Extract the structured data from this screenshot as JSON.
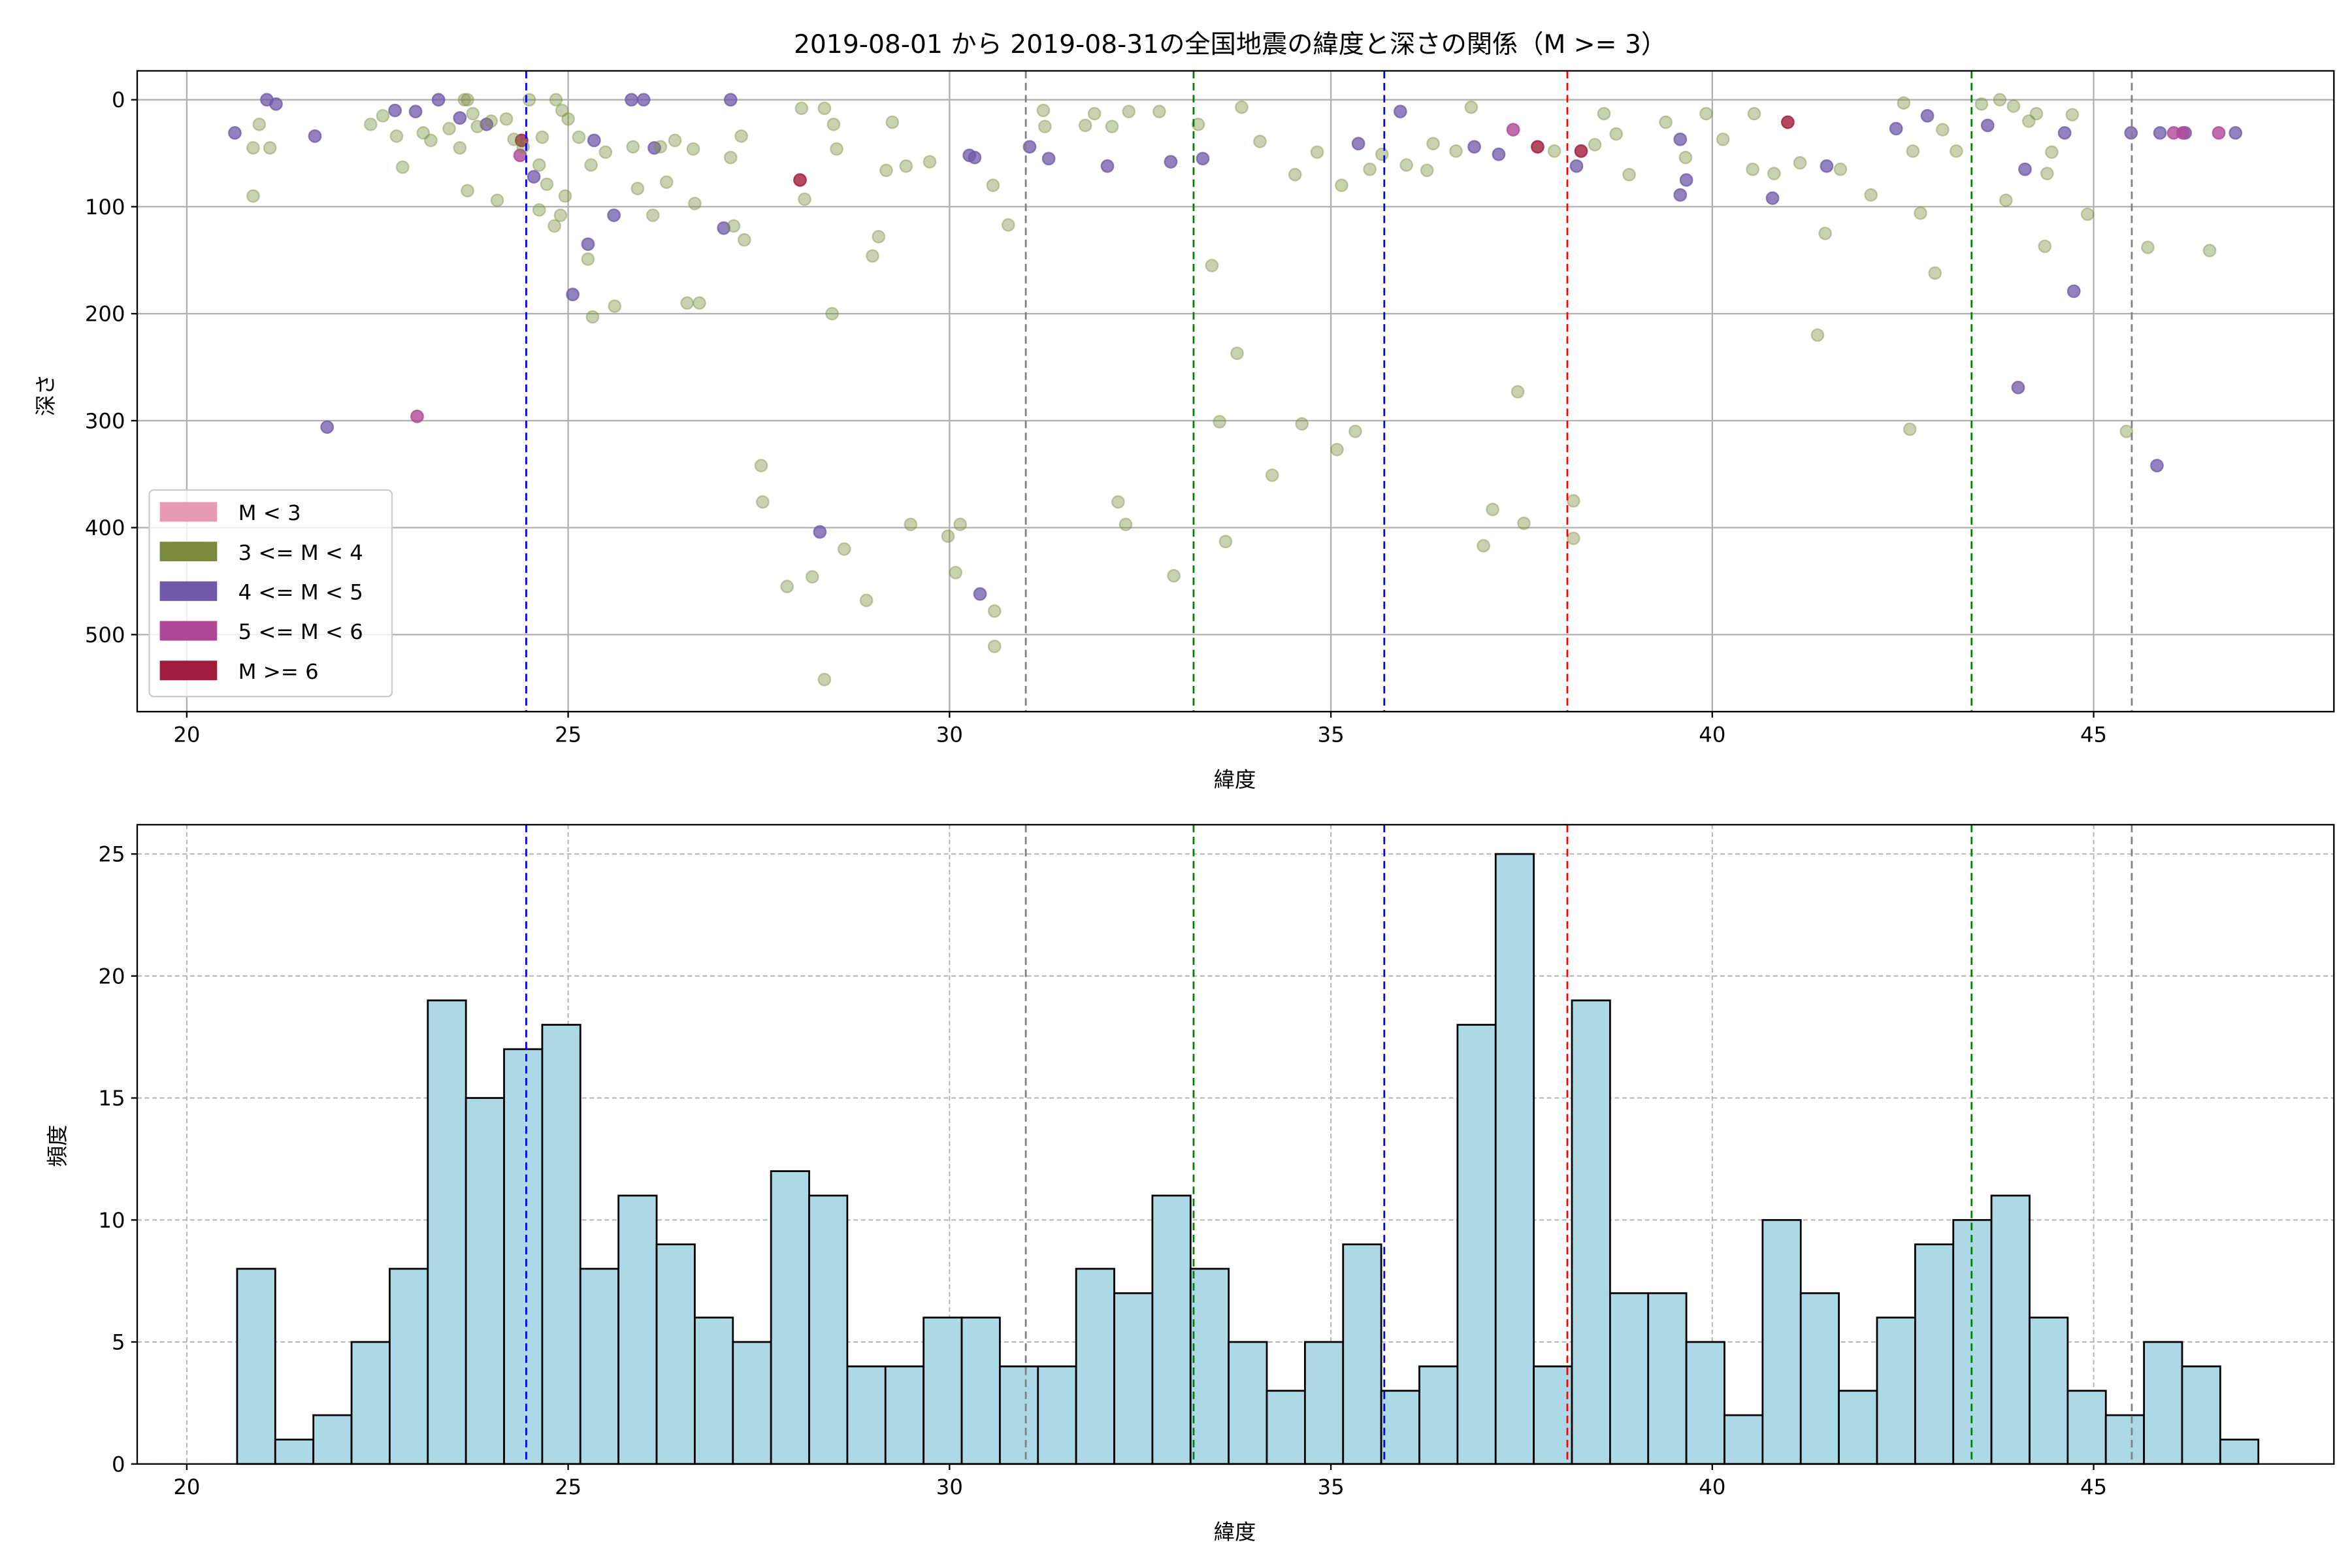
{
  "chart_data": [
    {
      "type": "scatter",
      "title": "2019-08-01 から 2019-08-31の全国地震の緯度と深さの関係（M >= 3）",
      "xlabel": "緯度",
      "ylabel": "深さ",
      "xlim": [
        19.35,
        48.15
      ],
      "ylim": [
        572,
        -27
      ],
      "y_inverted": true,
      "xticks": [
        "20",
        "25",
        "30",
        "35",
        "40",
        "45"
      ],
      "yticks": [
        "0",
        "100",
        "200",
        "300",
        "400",
        "500"
      ],
      "grid": true,
      "legend_position": "lower-left",
      "legend": [
        {
          "label": "M < 3",
          "color": "#e899b4"
        },
        {
          "label": "3 <= M < 4",
          "color": "#7b8b3d"
        },
        {
          "label": "4 <= M < 5",
          "color": "#6e5aa8"
        },
        {
          "label": "5 <= M < 6",
          "color": "#b0489a"
        },
        {
          "label": "M >= 6",
          "color": "#a01c3c"
        }
      ],
      "vlines": [
        {
          "x": 24.45,
          "color": "#0000ff"
        },
        {
          "x": 31.0,
          "color": "#808080"
        },
        {
          "x": 33.2,
          "color": "#008000"
        },
        {
          "x": 35.7,
          "color": "#0000ff"
        },
        {
          "x": 38.1,
          "color": "#ff0000"
        },
        {
          "x": 43.4,
          "color": "#008000"
        },
        {
          "x": 45.5,
          "color": "#808080"
        }
      ],
      "points": [
        [
          20.63,
          31,
          2
        ],
        [
          21.05,
          0,
          2
        ],
        [
          21.17,
          4,
          2
        ],
        [
          21.68,
          34,
          2
        ],
        [
          21.84,
          306,
          2
        ],
        [
          22.73,
          10,
          2
        ],
        [
          23.0,
          11,
          2
        ],
        [
          23.3,
          0,
          2
        ],
        [
          23.58,
          17,
          2
        ],
        [
          23.93,
          23,
          2
        ],
        [
          24.55,
          72,
          2
        ],
        [
          25.34,
          38,
          2
        ],
        [
          25.26,
          135,
          2
        ],
        [
          25.06,
          182,
          2
        ],
        [
          25.6,
          108,
          2
        ],
        [
          25.83,
          0,
          2
        ],
        [
          25.99,
          0,
          2
        ],
        [
          26.13,
          45,
          2
        ],
        [
          27.13,
          0,
          2
        ],
        [
          27.04,
          120,
          2
        ],
        [
          28.3,
          404,
          2
        ],
        [
          30.26,
          52,
          2
        ],
        [
          30.33,
          54,
          2
        ],
        [
          30.4,
          462,
          2
        ],
        [
          31.05,
          44,
          2
        ],
        [
          31.3,
          55,
          2
        ],
        [
          32.07,
          62,
          2
        ],
        [
          32.9,
          58,
          2
        ],
        [
          33.32,
          55,
          2
        ],
        [
          35.36,
          41,
          2
        ],
        [
          35.91,
          11,
          2
        ],
        [
          36.88,
          44,
          2
        ],
        [
          37.2,
          51,
          2
        ],
        [
          38.22,
          62,
          2
        ],
        [
          39.58,
          89,
          2
        ],
        [
          39.66,
          75,
          2
        ],
        [
          39.58,
          37,
          2
        ],
        [
          40.79,
          92,
          2
        ],
        [
          41.5,
          62,
          2
        ],
        [
          42.41,
          27,
          2
        ],
        [
          42.82,
          15,
          2
        ],
        [
          43.61,
          24,
          2
        ],
        [
          44.1,
          65,
          2
        ],
        [
          44.01,
          269,
          2
        ],
        [
          44.74,
          179,
          2
        ],
        [
          44.62,
          31,
          2
        ],
        [
          45.49,
          31,
          2
        ],
        [
          45.83,
          342,
          2
        ],
        [
          45.87,
          31,
          2
        ],
        [
          46.2,
          31,
          2
        ],
        [
          46.86,
          31,
          2
        ],
        [
          23.02,
          296,
          3
        ],
        [
          37.39,
          28,
          3
        ],
        [
          46.05,
          31,
          3
        ],
        [
          46.17,
          31,
          3
        ],
        [
          46.64,
          31,
          3
        ],
        [
          24.37,
          52,
          3
        ],
        [
          28.04,
          75,
          4
        ],
        [
          24.39,
          38,
          4
        ],
        [
          37.71,
          44,
          4
        ],
        [
          40.99,
          21,
          4
        ],
        [
          38.28,
          48,
          4
        ],
        [
          20.87,
          90,
          1
        ],
        [
          20.87,
          45,
          1
        ],
        [
          20.95,
          23,
          1
        ],
        [
          21.09,
          45,
          1
        ],
        [
          22.41,
          23,
          1
        ],
        [
          22.57,
          15,
          1
        ],
        [
          22.75,
          34,
          1
        ],
        [
          22.83,
          63,
          1
        ],
        [
          23.1,
          31,
          1
        ],
        [
          23.2,
          38,
          1
        ],
        [
          23.44,
          27,
          1
        ],
        [
          23.58,
          45,
          1
        ],
        [
          23.64,
          0,
          1
        ],
        [
          23.68,
          0,
          1
        ],
        [
          23.75,
          13,
          1
        ],
        [
          23.68,
          85,
          1
        ],
        [
          23.81,
          25,
          1
        ],
        [
          23.99,
          20,
          1
        ],
        [
          24.07,
          94,
          1
        ],
        [
          24.19,
          18,
          1
        ],
        [
          24.29,
          37,
          1
        ],
        [
          24.41,
          44,
          1
        ],
        [
          24.49,
          0,
          1
        ],
        [
          24.62,
          61,
          1
        ],
        [
          24.66,
          35,
          1
        ],
        [
          24.72,
          79,
          1
        ],
        [
          24.84,
          0,
          1
        ],
        [
          24.92,
          10,
          1
        ],
        [
          25.0,
          18,
          1
        ],
        [
          24.96,
          90,
          1
        ],
        [
          24.9,
          108,
          1
        ],
        [
          24.82,
          118,
          1
        ],
        [
          24.62,
          103,
          1
        ],
        [
          25.14,
          35,
          1
        ],
        [
          25.26,
          149,
          1
        ],
        [
          25.32,
          203,
          1
        ],
        [
          25.3,
          61,
          1
        ],
        [
          25.61,
          193,
          1
        ],
        [
          25.49,
          49,
          1
        ],
        [
          25.85,
          44,
          1
        ],
        [
          25.91,
          83,
          1
        ],
        [
          26.11,
          108,
          1
        ],
        [
          26.21,
          44,
          1
        ],
        [
          26.29,
          77,
          1
        ],
        [
          26.4,
          38,
          1
        ],
        [
          26.56,
          190,
          1
        ],
        [
          26.72,
          190,
          1
        ],
        [
          26.64,
          46,
          1
        ],
        [
          26.66,
          97,
          1
        ],
        [
          27.13,
          54,
          1
        ],
        [
          27.27,
          34,
          1
        ],
        [
          27.31,
          131,
          1
        ],
        [
          27.17,
          118,
          1
        ],
        [
          27.53,
          342,
          1
        ],
        [
          27.55,
          376,
          1
        ],
        [
          27.87,
          455,
          1
        ],
        [
          28.06,
          8,
          1
        ],
        [
          28.1,
          93,
          1
        ],
        [
          28.2,
          446,
          1
        ],
        [
          28.36,
          8,
          1
        ],
        [
          28.36,
          542,
          1
        ],
        [
          28.48,
          23,
          1
        ],
        [
          28.46,
          200,
          1
        ],
        [
          28.52,
          46,
          1
        ],
        [
          28.62,
          420,
          1
        ],
        [
          28.91,
          468,
          1
        ],
        [
          28.99,
          146,
          1
        ],
        [
          29.07,
          128,
          1
        ],
        [
          29.25,
          21,
          1
        ],
        [
          29.17,
          66,
          1
        ],
        [
          29.43,
          62,
          1
        ],
        [
          29.49,
          397,
          1
        ],
        [
          29.74,
          58,
          1
        ],
        [
          29.98,
          408,
          1
        ],
        [
          30.08,
          442,
          1
        ],
        [
          30.14,
          397,
          1
        ],
        [
          30.57,
          80,
          1
        ],
        [
          30.59,
          478,
          1
        ],
        [
          30.59,
          511,
          1
        ],
        [
          30.77,
          117,
          1
        ],
        [
          31.23,
          10,
          1
        ],
        [
          31.25,
          25,
          1
        ],
        [
          31.78,
          24,
          1
        ],
        [
          31.9,
          13,
          1
        ],
        [
          32.13,
          25,
          1
        ],
        [
          32.21,
          376,
          1
        ],
        [
          32.31,
          397,
          1
        ],
        [
          32.35,
          11,
          1
        ],
        [
          32.75,
          11,
          1
        ],
        [
          32.94,
          445,
          1
        ],
        [
          33.26,
          23,
          1
        ],
        [
          33.44,
          155,
          1
        ],
        [
          33.54,
          301,
          1
        ],
        [
          33.62,
          413,
          1
        ],
        [
          33.77,
          237,
          1
        ],
        [
          33.83,
          7,
          1
        ],
        [
          34.07,
          39,
          1
        ],
        [
          34.23,
          351,
          1
        ],
        [
          34.53,
          70,
          1
        ],
        [
          34.62,
          303,
          1
        ],
        [
          34.82,
          49,
          1
        ],
        [
          35.08,
          327,
          1
        ],
        [
          35.14,
          80,
          1
        ],
        [
          35.32,
          310,
          1
        ],
        [
          35.51,
          65,
          1
        ],
        [
          35.67,
          51,
          1
        ],
        [
          35.99,
          61,
          1
        ],
        [
          36.26,
          66,
          1
        ],
        [
          36.34,
          41,
          1
        ],
        [
          36.64,
          48,
          1
        ],
        [
          36.84,
          7,
          1
        ],
        [
          37.0,
          417,
          1
        ],
        [
          37.12,
          383,
          1
        ],
        [
          37.45,
          273,
          1
        ],
        [
          37.53,
          396,
          1
        ],
        [
          38.18,
          375,
          1
        ],
        [
          38.18,
          410,
          1
        ],
        [
          37.93,
          48,
          1
        ],
        [
          38.46,
          42,
          1
        ],
        [
          38.58,
          13,
          1
        ],
        [
          38.74,
          32,
          1
        ],
        [
          38.91,
          70,
          1
        ],
        [
          39.39,
          21,
          1
        ],
        [
          39.65,
          54,
          1
        ],
        [
          39.92,
          13,
          1
        ],
        [
          40.14,
          37,
          1
        ],
        [
          40.55,
          13,
          1
        ],
        [
          40.53,
          65,
          1
        ],
        [
          40.81,
          69,
          1
        ],
        [
          41.15,
          59,
          1
        ],
        [
          41.38,
          220,
          1
        ],
        [
          41.48,
          125,
          1
        ],
        [
          41.68,
          65,
          1
        ],
        [
          42.08,
          89,
          1
        ],
        [
          42.51,
          3,
          1
        ],
        [
          42.59,
          308,
          1
        ],
        [
          42.63,
          48,
          1
        ],
        [
          42.73,
          106,
          1
        ],
        [
          42.92,
          162,
          1
        ],
        [
          43.02,
          28,
          1
        ],
        [
          43.2,
          48,
          1
        ],
        [
          43.53,
          4,
          1
        ],
        [
          43.77,
          0,
          1
        ],
        [
          43.85,
          94,
          1
        ],
        [
          43.95,
          6,
          1
        ],
        [
          44.36,
          137,
          1
        ],
        [
          44.39,
          69,
          1
        ],
        [
          44.45,
          49,
          1
        ],
        [
          44.72,
          14,
          1
        ],
        [
          44.92,
          107,
          1
        ],
        [
          45.43,
          310,
          1
        ],
        [
          45.71,
          138,
          1
        ],
        [
          46.52,
          141,
          1
        ],
        [
          44.25,
          13,
          1
        ],
        [
          44.15,
          20,
          1
        ]
      ]
    },
    {
      "type": "bar",
      "subtype": "histogram",
      "xlabel": "緯度",
      "ylabel": "頻度",
      "xlim": [
        19.35,
        48.15
      ],
      "ylim": [
        0,
        26.2
      ],
      "bin_start": 20.66,
      "bin_width": 0.5,
      "values": [
        8,
        1,
        2,
        5,
        8,
        19,
        15,
        17,
        18,
        8,
        11,
        9,
        6,
        5,
        12,
        11,
        4,
        4,
        6,
        6,
        4,
        4,
        8,
        7,
        11,
        8,
        5,
        3,
        5,
        9,
        3,
        4,
        18,
        25,
        4,
        19,
        7,
        7,
        5,
        2,
        10,
        7,
        3,
        6,
        9,
        10,
        11,
        6,
        3,
        2,
        5,
        4,
        1
      ],
      "bar_color": "#add8e6",
      "xticks": [
        "20",
        "25",
        "30",
        "35",
        "40",
        "45"
      ],
      "yticks": [
        "0",
        "5",
        "10",
        "15",
        "20",
        "25"
      ],
      "grid": true,
      "vlines": [
        {
          "x": 24.45,
          "color": "#0000ff"
        },
        {
          "x": 31.0,
          "color": "#808080"
        },
        {
          "x": 33.2,
          "color": "#008000"
        },
        {
          "x": 35.7,
          "color": "#0000ff"
        },
        {
          "x": 38.1,
          "color": "#ff0000"
        },
        {
          "x": 43.4,
          "color": "#008000"
        },
        {
          "x": 45.5,
          "color": "#808080"
        }
      ]
    }
  ]
}
